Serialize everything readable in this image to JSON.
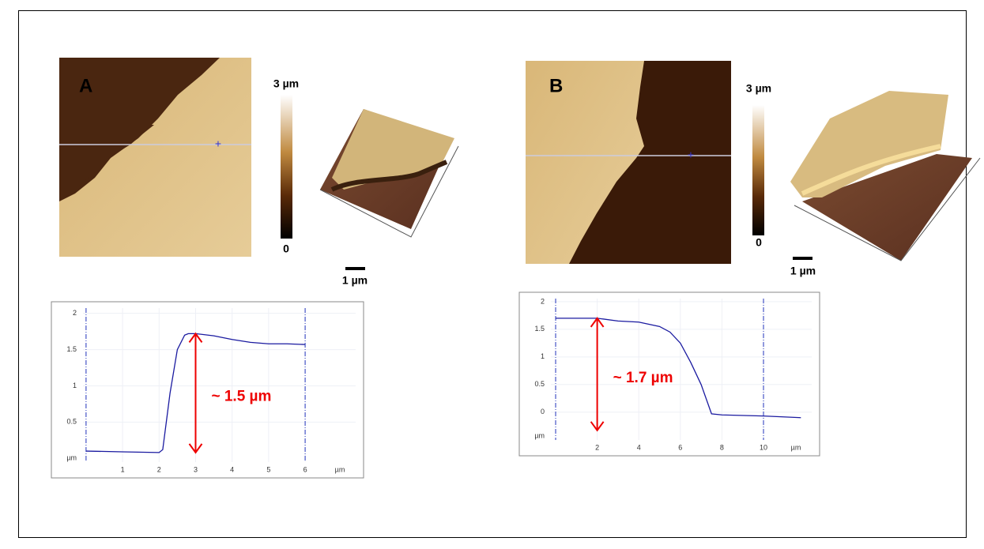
{
  "panels": [
    {
      "label": "A",
      "colorbar_max": "3 µm",
      "colorbar_min": "0",
      "scale_bar": "1 µm"
    },
    {
      "label": "B",
      "colorbar_max": "3 µm",
      "colorbar_min": "0",
      "scale_bar": "1 µm"
    }
  ],
  "chart_data": [
    {
      "type": "line",
      "xlabel": "µm",
      "ylabel": "µm",
      "color": "#1a1aa0",
      "x": [
        0,
        1,
        2,
        2.1,
        2.3,
        2.5,
        2.7,
        2.8,
        3,
        3.5,
        4,
        4.5,
        5,
        5.5,
        6
      ],
      "values": [
        0.1,
        0.09,
        0.08,
        0.12,
        0.9,
        1.5,
        1.7,
        1.72,
        1.72,
        1.69,
        1.64,
        1.6,
        1.58,
        1.58,
        1.57
      ],
      "xlim": [
        -0.95,
        7.6
      ],
      "ylim": [
        -0.27,
        2.16
      ],
      "xticks": [
        1,
        2,
        3,
        4,
        5,
        6
      ],
      "yticks": [
        0.5,
        1,
        1.5,
        2
      ],
      "grid": true,
      "cursors": [
        0,
        6
      ],
      "annotation": {
        "text": "~ 1.5 µm",
        "x": 3,
        "from": 0.08,
        "to": 1.72
      }
    },
    {
      "type": "line",
      "xlabel": "µm",
      "ylabel": "µm",
      "color": "#1a1aa0",
      "x": [
        0,
        2,
        3,
        4,
        5,
        5.5,
        6,
        6.5,
        7,
        7.5,
        8,
        10,
        11.8
      ],
      "values": [
        1.7,
        1.7,
        1.65,
        1.63,
        1.55,
        1.45,
        1.25,
        0.9,
        0.5,
        -0.03,
        -0.05,
        -0.07,
        -0.1
      ],
      "xlim": [
        -1.75,
        12.7
      ],
      "ylim": [
        -0.79,
        2.17
      ],
      "xticks": [
        2,
        4,
        6,
        8,
        10
      ],
      "yticks": [
        0,
        0.5,
        1,
        1.5,
        2
      ],
      "grid": true,
      "cursors": [
        0,
        10
      ],
      "annotation": {
        "text": "~ 1.7 µm",
        "x": 2,
        "from": -0.33,
        "to": 1.7
      }
    }
  ]
}
